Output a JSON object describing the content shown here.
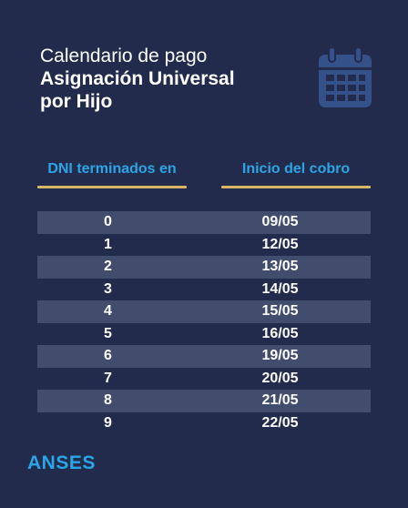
{
  "title": {
    "line1": "Calendario de pago",
    "line2": "Asignación Universal",
    "line3": "por Hijo"
  },
  "icon": "calendar-icon",
  "table": {
    "headers": [
      "DNI terminados en",
      "Inicio del cobro"
    ],
    "rows": [
      {
        "dni": "0",
        "date": "09/05"
      },
      {
        "dni": "1",
        "date": "12/05"
      },
      {
        "dni": "2",
        "date": "13/05"
      },
      {
        "dni": "3",
        "date": "14/05"
      },
      {
        "dni": "4",
        "date": "15/05"
      },
      {
        "dni": "5",
        "date": "16/05"
      },
      {
        "dni": "6",
        "date": "19/05"
      },
      {
        "dni": "7",
        "date": "20/05"
      },
      {
        "dni": "8",
        "date": "21/05"
      },
      {
        "dni": "9",
        "date": "22/05"
      }
    ]
  },
  "brand": "ANSES",
  "colors": {
    "background": "#222b4b",
    "accent": "#2aa6e6",
    "underline": "#d8b867",
    "row_shade": "#424c6c",
    "icon": "#35518a"
  }
}
